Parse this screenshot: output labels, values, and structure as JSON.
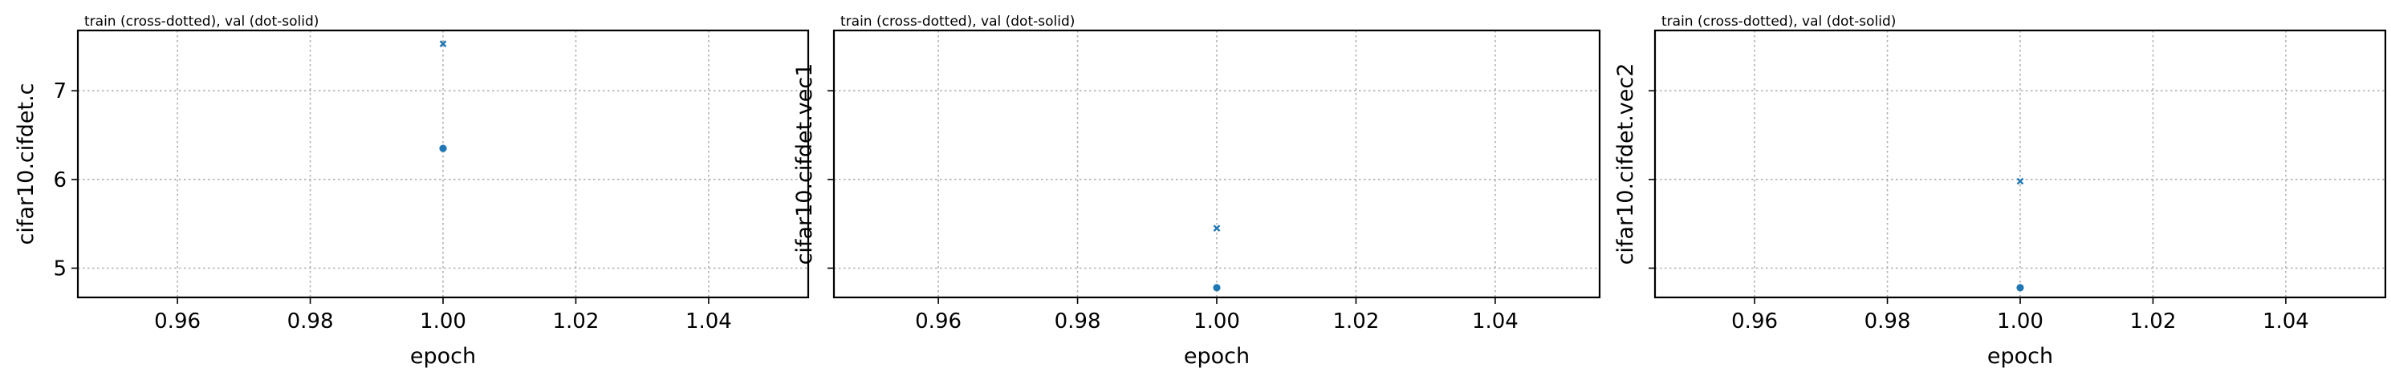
{
  "chart_data": [
    {
      "type": "scatter",
      "title": "train (cross-dotted), val (dot-solid)",
      "xlabel": "epoch",
      "ylabel": "cifar10.cifdet.c",
      "xlim": [
        0.945,
        1.055
      ],
      "ylim": [
        4.67,
        7.68
      ],
      "xticks": [
        0.96,
        0.98,
        1.0,
        1.02,
        1.04
      ],
      "xtick_labels": [
        "0.96",
        "0.98",
        "1.00",
        "1.02",
        "1.04"
      ],
      "yticks": [
        5,
        6,
        7
      ],
      "ytick_labels": [
        "5",
        "6",
        "7"
      ],
      "grid": true,
      "series": [
        {
          "marker": "cross",
          "x": [
            1.0
          ],
          "values": [
            7.53
          ]
        },
        {
          "marker": "dot",
          "x": [
            1.0
          ],
          "values": [
            6.35
          ]
        }
      ],
      "color": "#1f77b4"
    },
    {
      "type": "scatter",
      "title": "train (cross-dotted), val (dot-solid)",
      "xlabel": "epoch",
      "ylabel": "cifar10.cifdet.vec1",
      "xlim": [
        0.945,
        1.055
      ],
      "ylim": [
        4.67,
        7.68
      ],
      "xticks": [
        0.96,
        0.98,
        1.0,
        1.02,
        1.04
      ],
      "xtick_labels": [
        "0.96",
        "0.98",
        "1.00",
        "1.02",
        "1.04"
      ],
      "yticks": [
        5,
        6,
        7
      ],
      "ytick_labels": [
        "",
        "",
        ""
      ],
      "grid": true,
      "series": [
        {
          "marker": "cross",
          "x": [
            1.0
          ],
          "values": [
            5.45
          ]
        },
        {
          "marker": "dot",
          "x": [
            1.0
          ],
          "values": [
            4.78
          ]
        }
      ],
      "color": "#1f77b4"
    },
    {
      "type": "scatter",
      "title": "train (cross-dotted), val (dot-solid)",
      "xlabel": "epoch",
      "ylabel": "cifar10.cifdet.vec2",
      "xlim": [
        0.945,
        1.055
      ],
      "ylim": [
        4.67,
        7.68
      ],
      "xticks": [
        0.96,
        0.98,
        1.0,
        1.02,
        1.04
      ],
      "xtick_labels": [
        "0.96",
        "0.98",
        "1.00",
        "1.02",
        "1.04"
      ],
      "yticks": [
        5,
        6,
        7
      ],
      "ytick_labels": [
        "",
        "",
        ""
      ],
      "grid": true,
      "series": [
        {
          "marker": "cross",
          "x": [
            1.0
          ],
          "values": [
            5.98
          ]
        },
        {
          "marker": "dot",
          "x": [
            1.0
          ],
          "values": [
            4.78
          ]
        }
      ],
      "color": "#1f77b4"
    }
  ]
}
